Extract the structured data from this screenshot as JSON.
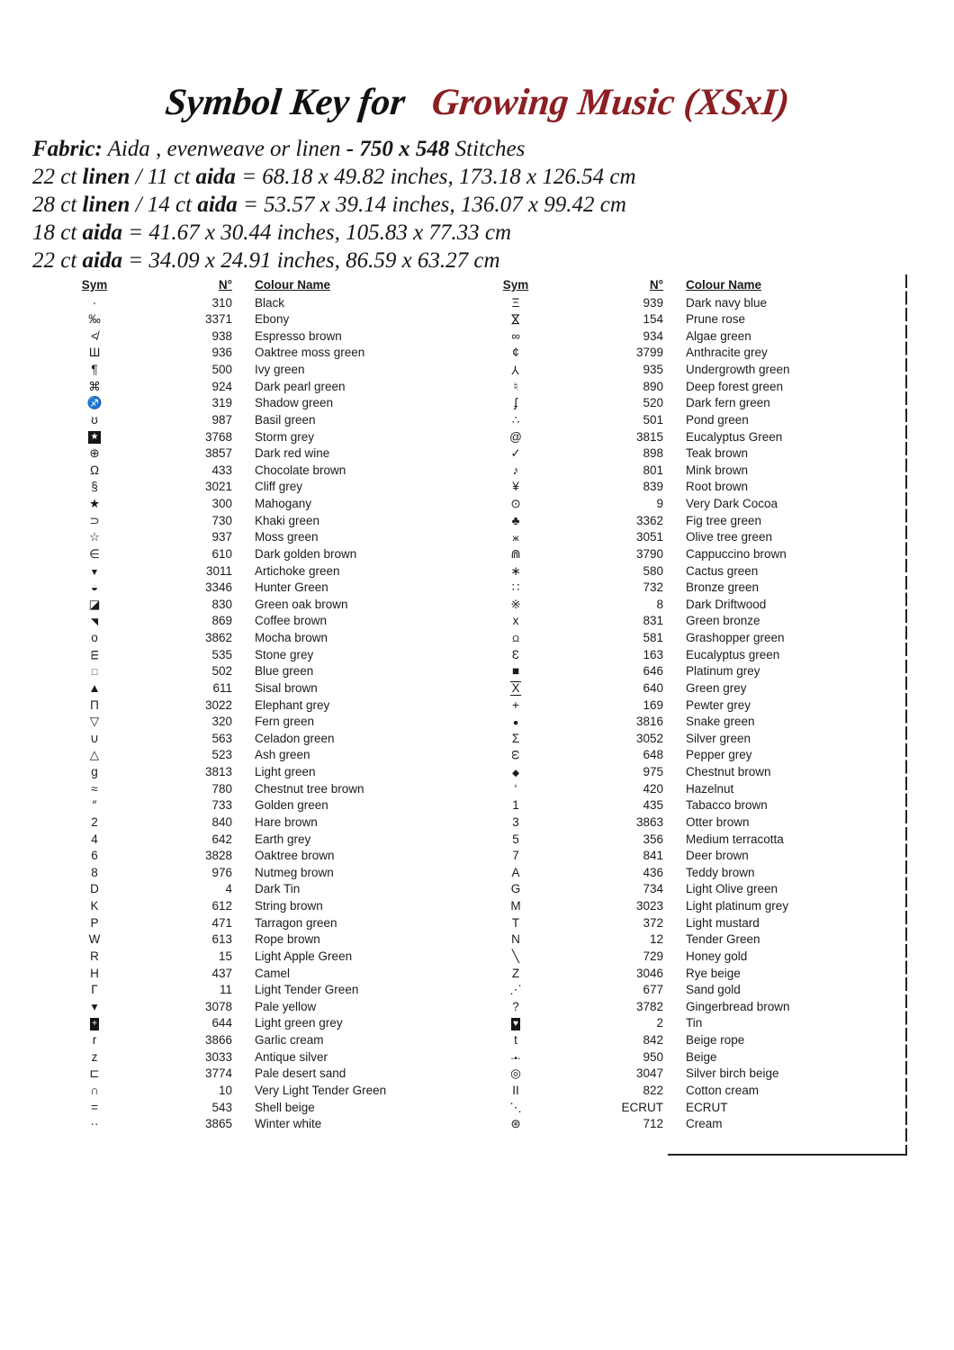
{
  "page": {
    "background_color": "#ffffff",
    "text_color": "#1b1b1b",
    "accent_color": "#8b1f23"
  },
  "title": {
    "prefix": "Symbol Key for",
    "pattern_name": "Growing Music (XSxI)"
  },
  "fabric_lines": [
    [
      {
        "t": "Fabric:",
        "b": true
      },
      {
        "t": "  Aida , evenweave or  linen ",
        "b": false
      },
      {
        "t": "- 750 x 548",
        "b": true
      },
      {
        "t": " Stitches",
        "b": false
      }
    ],
    [
      {
        "t": "22 ct ",
        "b": false
      },
      {
        "t": "linen",
        "b": true
      },
      {
        "t": " / 11 ct ",
        "b": false
      },
      {
        "t": "aida",
        "b": true
      },
      {
        "t": " = 68.18 x 49.82 inches, 173.18 x 126.54 cm",
        "b": false
      }
    ],
    [
      {
        "t": "28 ct ",
        "b": false
      },
      {
        "t": "linen",
        "b": true
      },
      {
        "t": " / 14 ct ",
        "b": false
      },
      {
        "t": "aida",
        "b": true
      },
      {
        "t": " = 53.57 x 39.14 inches, 136.07 x 99.42 cm",
        "b": false
      }
    ],
    [
      {
        "t": "18 ct ",
        "b": false
      },
      {
        "t": "aida",
        "b": true
      },
      {
        "t": "  = 41.67 x 30.44 inches, 105.83 x 77.33 cm",
        "b": false
      }
    ],
    [
      {
        "t": "22 ct ",
        "b": false
      },
      {
        "t": "aida",
        "b": true
      },
      {
        "t": " = 34.09 x 24.91 inches, 86.59 x 63.27 cm",
        "b": false
      }
    ]
  ],
  "key_table": {
    "sym_header": "Sym",
    "num_header": "N°",
    "name_header": "Colour Name",
    "left_rows": [
      {
        "sym": "·",
        "num": "310",
        "name": "Black"
      },
      {
        "sym": "‰",
        "num": "3371",
        "name": "Ebony"
      },
      {
        "sym": "≮",
        "num": "938",
        "name": "Espresso brown"
      },
      {
        "sym": "Ш",
        "num": "936",
        "name": "Oaktree moss green"
      },
      {
        "sym": "¶",
        "num": "500",
        "name": "Ivy green"
      },
      {
        "sym": "⌘",
        "num": "924",
        "name": "Dark pearl green"
      },
      {
        "sym": "♐",
        "num": "319",
        "name": "Shadow green"
      },
      {
        "sym": "ʊ",
        "num": "987",
        "name": "Basil green"
      },
      {
        "sym": "★",
        "num": "3768",
        "name": "Storm grey",
        "style": "inv"
      },
      {
        "sym": "⊕",
        "num": "3857",
        "name": "Dark red wine"
      },
      {
        "sym": "Ω",
        "num": "433",
        "name": "Chocolate brown"
      },
      {
        "sym": "§",
        "num": "3021",
        "name": "Cliff grey"
      },
      {
        "sym": "★",
        "num": "300",
        "name": "Mahogany"
      },
      {
        "sym": "⊃",
        "num": "730",
        "name": "Khaki green"
      },
      {
        "sym": "☆",
        "num": "937",
        "name": "Moss green"
      },
      {
        "sym": "∈",
        "num": "610",
        "name": "Dark golden brown"
      },
      {
        "sym": "▼",
        "num": "3011",
        "name": "Artichoke green",
        "style": "sm"
      },
      {
        "sym": "◒",
        "num": "3346",
        "name": "Hunter Green"
      },
      {
        "sym": "◪",
        "num": "830",
        "name": "Green oak brown"
      },
      {
        "sym": "◥",
        "num": "869",
        "name": "Coffee brown",
        "style": "sm"
      },
      {
        "sym": "o",
        "num": "3862",
        "name": "Mocha brown"
      },
      {
        "sym": "m",
        "num": "535",
        "name": "Stone grey",
        "style": "rotm90"
      },
      {
        "sym": "□",
        "num": "502",
        "name": "Blue green",
        "style": "sm"
      },
      {
        "sym": "▲",
        "num": "611",
        "name": "Sisal brown"
      },
      {
        "sym": "Π",
        "num": "3022",
        "name": "Elephant grey"
      },
      {
        "sym": "▽",
        "num": "320",
        "name": "Fern green"
      },
      {
        "sym": "∪",
        "num": "563",
        "name": "Celadon green"
      },
      {
        "sym": "△",
        "num": "523",
        "name": "Ash green"
      },
      {
        "sym": "g",
        "num": "3813",
        "name": "Light green"
      },
      {
        "sym": "≈",
        "num": "780",
        "name": "Chestnut tree brown"
      },
      {
        "sym": "″",
        "num": "733",
        "name": "Golden green"
      },
      {
        "sym": "2",
        "num": "840",
        "name": "Hare brown"
      },
      {
        "sym": "4",
        "num": "642",
        "name": "Earth grey"
      },
      {
        "sym": "6",
        "num": "3828",
        "name": "Oaktree brown"
      },
      {
        "sym": "8",
        "num": "976",
        "name": "Nutmeg brown"
      },
      {
        "sym": "D",
        "num": "4",
        "name": "Dark Tin"
      },
      {
        "sym": "K",
        "num": "612",
        "name": "String brown"
      },
      {
        "sym": "P",
        "num": "471",
        "name": "Tarragon green"
      },
      {
        "sym": "W",
        "num": "613",
        "name": "Rope brown"
      },
      {
        "sym": "R",
        "num": "15",
        "name": "Light Apple Green"
      },
      {
        "sym": "H",
        "num": "437",
        "name": "Camel"
      },
      {
        "sym": "Γ",
        "num": "11",
        "name": "Light Tender Green"
      },
      {
        "sym": "▾",
        "num": "3078",
        "name": "Pale yellow"
      },
      {
        "sym": "+",
        "num": "644",
        "name": "Light green grey",
        "style": "inv"
      },
      {
        "sym": "r",
        "num": "3866",
        "name": "Garlic cream"
      },
      {
        "sym": "z",
        "num": "3033",
        "name": "Antique silver"
      },
      {
        "sym": "⊏",
        "num": "3774",
        "name": "Pale desert sand"
      },
      {
        "sym": "∩",
        "num": "10",
        "name": "Very Light Tender Green"
      },
      {
        "sym": "=",
        "num": "543",
        "name": "Shell beige"
      },
      {
        "sym": "··",
        "num": "3865",
        "name": "Winter white"
      }
    ],
    "right_rows": [
      {
        "sym": "Ξ",
        "num": "939",
        "name": "Dark navy blue"
      },
      {
        "sym": "⋈",
        "num": "154",
        "name": "Prune rose",
        "style": "rot90"
      },
      {
        "sym": "∞",
        "num": "934",
        "name": "Algae green"
      },
      {
        "sym": "¢",
        "num": "3799",
        "name": "Anthracite grey"
      },
      {
        "sym": "Y",
        "num": "935",
        "name": "Undergrowth green",
        "style": "rot180"
      },
      {
        "sym": "♮",
        "num": "890",
        "name": "Deep forest green"
      },
      {
        "sym": "ʄ",
        "num": "520",
        "name": "Dark fern green"
      },
      {
        "sym": "∴",
        "num": "501",
        "name": "Pond green"
      },
      {
        "sym": "@",
        "num": "3815",
        "name": "Eucalyptus Green"
      },
      {
        "sym": "✓",
        "num": "898",
        "name": "Teak brown"
      },
      {
        "sym": "♪",
        "num": "801",
        "name": "Mink brown"
      },
      {
        "sym": "¥",
        "num": "839",
        "name": "Root brown"
      },
      {
        "sym": "⊙",
        "num": "9",
        "name": "Very Dark Cocoa"
      },
      {
        "sym": "♣",
        "num": "3362",
        "name": "Fig tree green"
      },
      {
        "sym": "ж",
        "num": "3051",
        "name": "Olive tree green",
        "style": "sm"
      },
      {
        "sym": "⋒",
        "num": "3790",
        "name": "Cappuccino brown"
      },
      {
        "sym": "∗",
        "num": "580",
        "name": "Cactus green"
      },
      {
        "sym": "∷",
        "num": "732",
        "name": "Bronze green"
      },
      {
        "sym": "※",
        "num": "8",
        "name": "Dark Driftwood"
      },
      {
        "sym": "x",
        "num": "831",
        "name": "Green bronze"
      },
      {
        "sym": "Ω",
        "num": "581",
        "name": "Grashopper green",
        "style": "sm"
      },
      {
        "sym": "Ɛ",
        "num": "163",
        "name": "Eucalyptus green"
      },
      {
        "sym": "■",
        "num": "646",
        "name": "Platinum grey"
      },
      {
        "sym": "X",
        "num": "640",
        "name": "Green grey",
        "style": "bars"
      },
      {
        "sym": "+",
        "num": "169",
        "name": "Pewter grey"
      },
      {
        "sym": "●",
        "num": "3816",
        "name": "Snake green",
        "style": "sm"
      },
      {
        "sym": "Σ",
        "num": "3052",
        "name": "Silver green"
      },
      {
        "sym": "ω",
        "num": "648",
        "name": "Pepper grey",
        "style": "rot90"
      },
      {
        "sym": "◆",
        "num": "975",
        "name": "Chestnut brown",
        "style": "sm"
      },
      {
        "sym": "‘",
        "num": "420",
        "name": "Hazelnut"
      },
      {
        "sym": "1",
        "num": "435",
        "name": "Tabacco brown"
      },
      {
        "sym": "3",
        "num": "3863",
        "name": "Otter brown"
      },
      {
        "sym": "5",
        "num": "356",
        "name": "Medium terracotta"
      },
      {
        "sym": "7",
        "num": "841",
        "name": "Deer brown"
      },
      {
        "sym": "A",
        "num": "436",
        "name": "Teddy brown"
      },
      {
        "sym": "G",
        "num": "734",
        "name": "Light Olive green"
      },
      {
        "sym": "M",
        "num": "3023",
        "name": "Light platinum grey"
      },
      {
        "sym": "T",
        "num": "372",
        "name": "Light mustard"
      },
      {
        "sym": "N",
        "num": "12",
        "name": "Tender Green"
      },
      {
        "sym": "╲",
        "num": "729",
        "name": "Honey gold"
      },
      {
        "sym": "Z",
        "num": "3046",
        "name": "Rye beige"
      },
      {
        "sym": "⋰",
        "num": "677",
        "name": "Sand gold"
      },
      {
        "sym": "?",
        "num": "3782",
        "name": "Gingerbread brown"
      },
      {
        "sym": "♥",
        "num": "2",
        "name": "Tin",
        "style": "inv"
      },
      {
        "sym": "t",
        "num": "842",
        "name": "Beige rope"
      },
      {
        "sym": "-•-",
        "num": "950",
        "name": "Beige",
        "style": "sm"
      },
      {
        "sym": "◎",
        "num": "3047",
        "name": "Silver birch beige"
      },
      {
        "sym": "II",
        "num": "822",
        "name": "Cotton cream"
      },
      {
        "sym": "⋱",
        "num": "ECRUT",
        "name": "ECRUT"
      },
      {
        "sym": "⊛",
        "num": "712",
        "name": "Cream"
      }
    ]
  }
}
